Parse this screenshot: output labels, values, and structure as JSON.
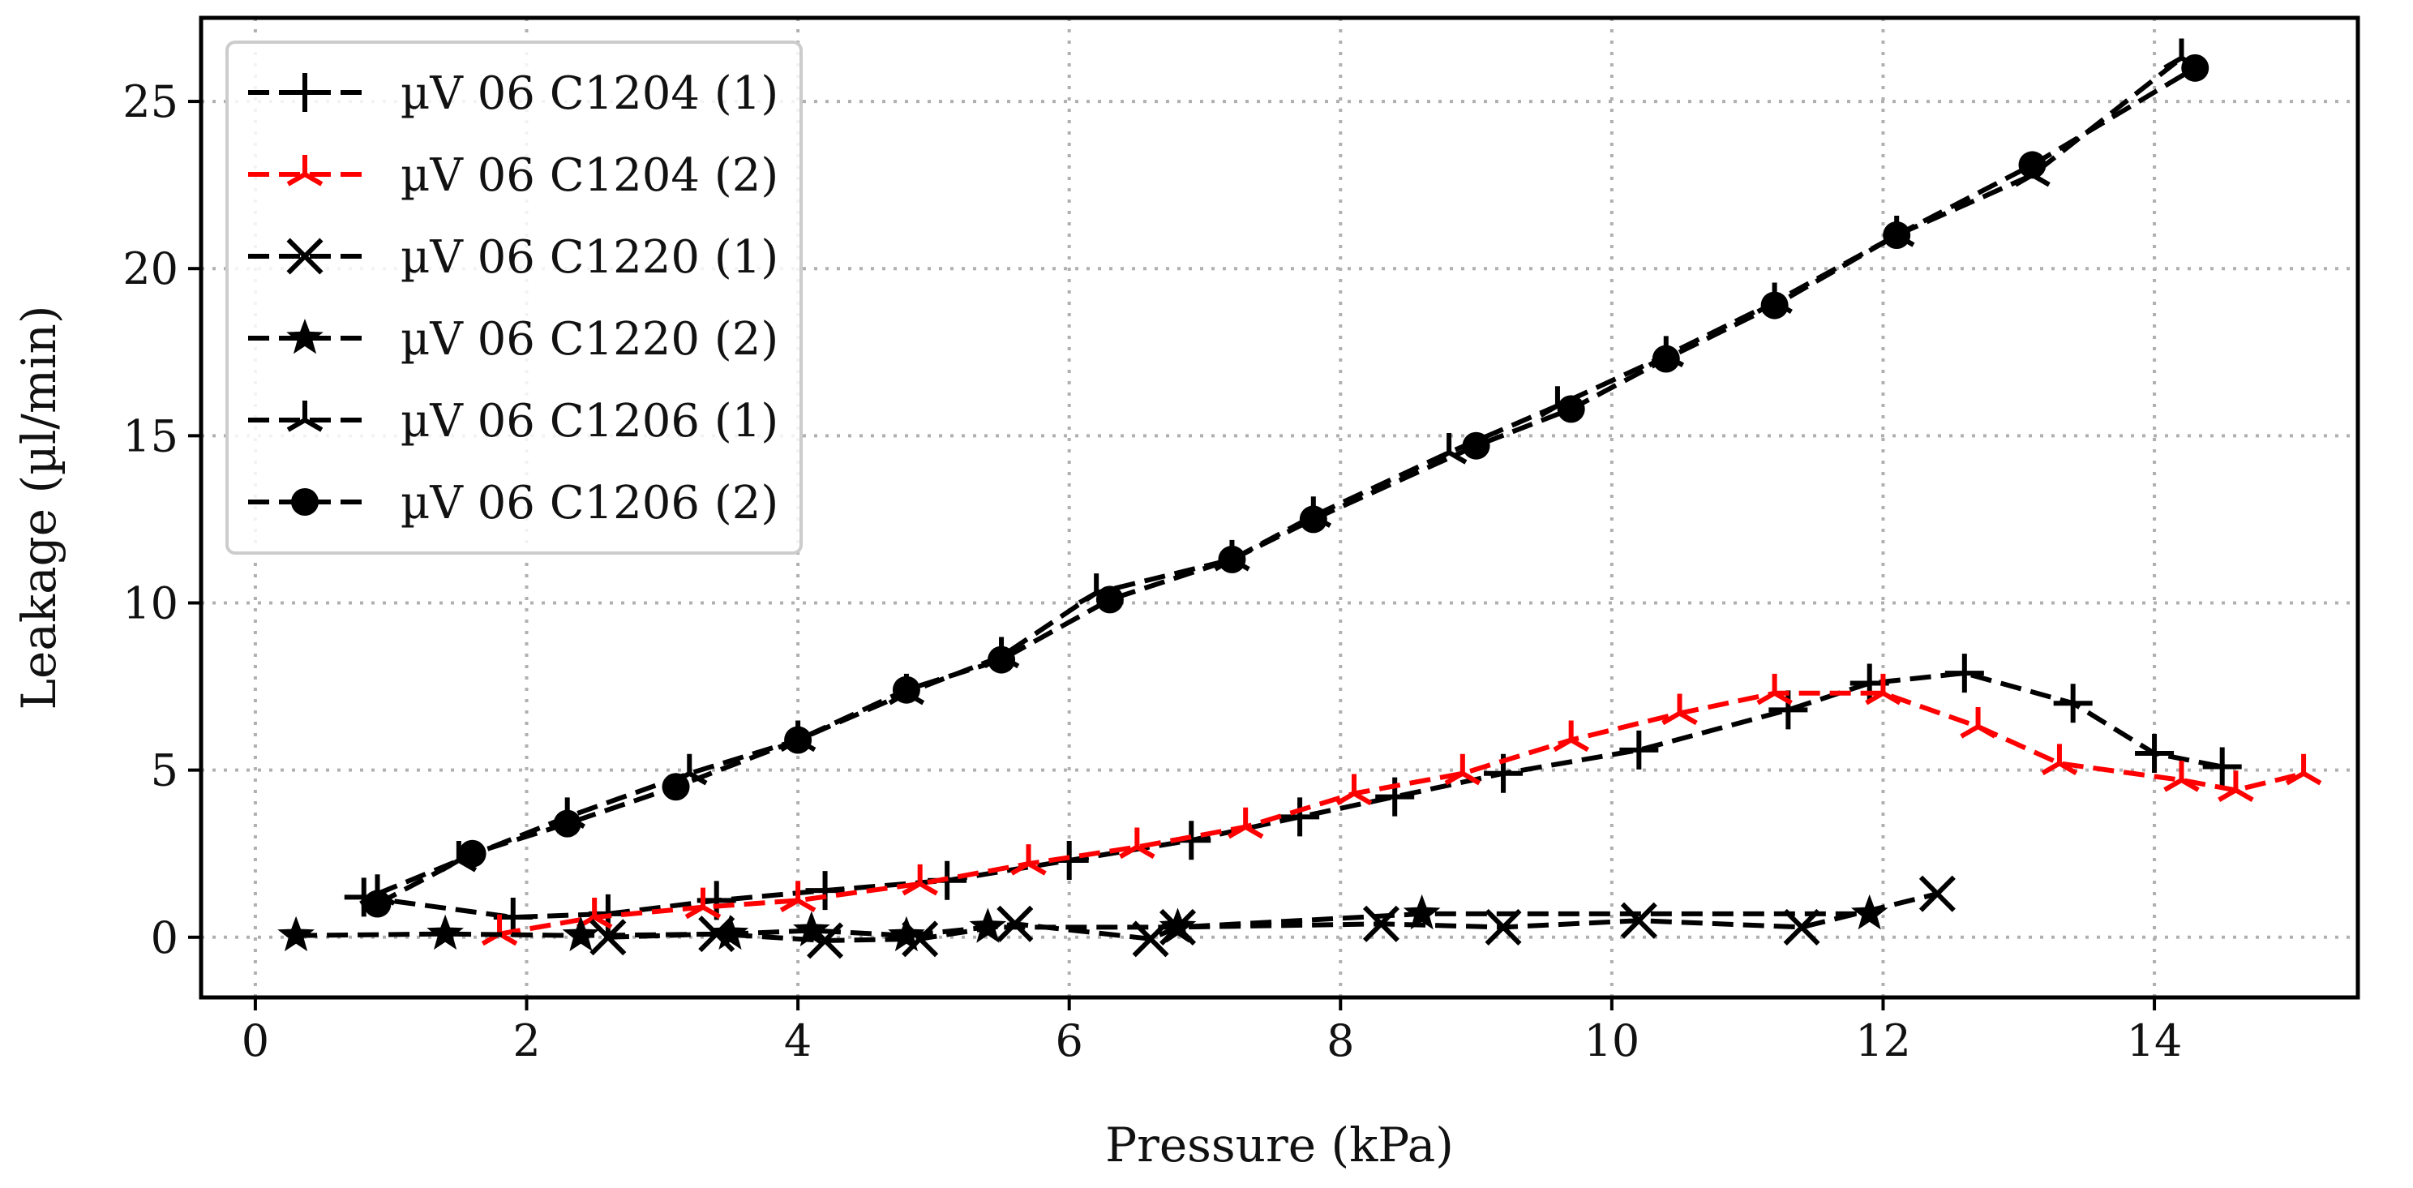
{
  "chart_data": {
    "type": "line",
    "title": "",
    "xlabel": "Pressure (kPa)",
    "ylabel": "Leakage (µl/min)",
    "xlim": [
      -0.4,
      15.5
    ],
    "ylim": [
      -1.8,
      27.5
    ],
    "xticks": [
      0,
      2,
      4,
      6,
      8,
      10,
      12,
      14
    ],
    "yticks": [
      0,
      5,
      10,
      15,
      20,
      25
    ],
    "xtick_labels": [
      "0",
      "2",
      "4",
      "6",
      "8",
      "10",
      "12",
      "14"
    ],
    "ytick_labels": [
      "0",
      "5",
      "10",
      "15",
      "20",
      "25"
    ],
    "grid": true,
    "legend_position": "top-left",
    "series": [
      {
        "name": "µV 06 C1204 (1)",
        "color": "#000000",
        "marker": "plus",
        "x": [
          0.8,
          1.9,
          2.6,
          3.4,
          4.2,
          5.1,
          6.0,
          6.9,
          7.7,
          8.4,
          9.2,
          10.2,
          11.3,
          11.9,
          12.6,
          13.4,
          14.0,
          14.5
        ],
        "y": [
          1.2,
          0.6,
          0.7,
          1.1,
          1.4,
          1.7,
          2.3,
          2.9,
          3.6,
          4.2,
          4.9,
          5.6,
          6.8,
          7.6,
          7.9,
          7.0,
          5.5,
          5.1
        ]
      },
      {
        "name": "µV 06 C1204 (2)",
        "color": "#ff0000",
        "marker": "tri",
        "x": [
          1.8,
          2.5,
          3.3,
          4.0,
          4.9,
          5.7,
          6.5,
          7.3,
          8.1,
          8.9,
          9.7,
          10.5,
          11.2,
          12.0,
          12.7,
          13.3,
          14.2,
          14.6,
          15.1
        ],
        "y": [
          0.1,
          0.6,
          0.9,
          1.1,
          1.6,
          2.2,
          2.7,
          3.3,
          4.3,
          4.9,
          5.9,
          6.7,
          7.3,
          7.3,
          6.3,
          5.2,
          4.7,
          4.4,
          4.9
        ]
      },
      {
        "name": "µV 06 C1220 (1)",
        "color": "#000000",
        "marker": "x",
        "x": [
          2.6,
          3.4,
          4.2,
          4.9,
          5.6,
          6.6,
          6.8,
          8.3,
          9.2,
          10.2,
          11.4,
          12.4
        ],
        "y": [
          0.0,
          0.1,
          -0.1,
          -0.05,
          0.4,
          -0.05,
          0.3,
          0.4,
          0.3,
          0.5,
          0.3,
          1.3
        ]
      },
      {
        "name": "µV 06 C1220 (2)",
        "color": "#000000",
        "marker": "star",
        "x": [
          0.3,
          1.4,
          2.4,
          3.5,
          4.1,
          4.8,
          5.4,
          6.8,
          8.6,
          11.9
        ],
        "y": [
          0.05,
          0.1,
          0.05,
          0.1,
          0.2,
          0.05,
          0.3,
          0.3,
          0.7,
          0.7
        ]
      },
      {
        "name": "µV 06 C1206 (1)",
        "color": "#000000",
        "marker": "tri",
        "x": [
          0.9,
          1.5,
          2.3,
          3.2,
          4.0,
          4.8,
          5.5,
          6.2,
          7.2,
          7.8,
          8.8,
          9.6,
          10.4,
          11.2,
          12.1,
          13.1,
          14.2
        ],
        "y": [
          1.3,
          2.3,
          3.6,
          4.9,
          5.9,
          7.3,
          8.4,
          10.3,
          11.3,
          12.6,
          14.5,
          15.9,
          17.4,
          19.0,
          21.0,
          22.8,
          26.3
        ]
      },
      {
        "name": "µV 06 C1206 (2)",
        "color": "#000000",
        "marker": "circle",
        "x": [
          0.9,
          1.6,
          2.3,
          3.1,
          4.0,
          4.8,
          5.5,
          6.3,
          7.2,
          7.8,
          9.0,
          9.7,
          10.4,
          11.2,
          12.1,
          13.1,
          14.3
        ],
        "y": [
          1.0,
          2.5,
          3.4,
          4.5,
          5.9,
          7.4,
          8.3,
          10.1,
          11.3,
          12.5,
          14.7,
          15.8,
          17.3,
          18.9,
          21.0,
          23.1,
          26.0
        ]
      }
    ]
  }
}
